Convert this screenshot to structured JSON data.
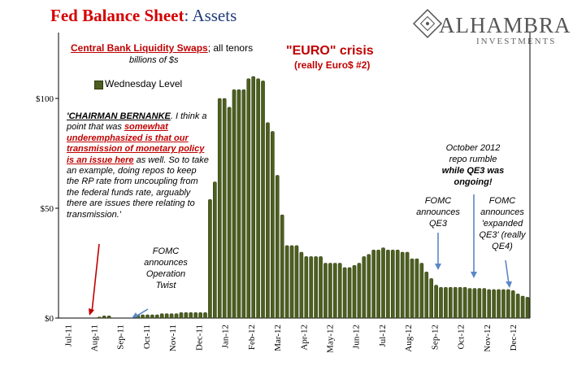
{
  "header": {
    "title_main": "Fed Balance Sheet",
    "title_rest": ": Assets",
    "logo_name": "ALHAMBRA",
    "logo_sub": "INVESTMENTS"
  },
  "subtitle": {
    "series_title": "Central Bank Liquidity Swaps",
    "tenors": "; all tenors",
    "units": "billions of $s"
  },
  "legend": {
    "label": "Wednesday Level"
  },
  "callouts": {
    "euro_line1": "\"EURO\" crisis",
    "euro_line2": "(really Euro$ #2)",
    "quote_speaker": "'CHAIRMAN BERNANKE",
    "quote_part1": ". I think a point that was ",
    "quote_highlight": "somewhat underemphasized is that our transmission of monetary policy is an issue here",
    "quote_part2": " as well. So to take an example, doing repos to keep the RP rate from uncoupling from the federal funds rate, arguably there are issues there relating to transmission.'",
    "twist_1": "FOMC",
    "twist_2": "announces",
    "twist_3": "Operation",
    "twist_4": "Twist",
    "qe3_1": "FOMC",
    "qe3_2": "announces",
    "qe3_3": "QE3",
    "oct_1": "October 2012",
    "oct_2": "repo rumble",
    "oct_3": "while QE3 was",
    "oct_4": "ongoing!",
    "qe4_1": "FOMC",
    "qe4_2": "announces",
    "qe4_3": "'expanded",
    "qe4_4": "QE3' (really",
    "qe4_5": "QE4)"
  },
  "colors": {
    "bar": "#4d5f1f",
    "bar_edge": "#2c3a0e",
    "title_red": "#d40000",
    "title_blue": "#1f3a7a",
    "arrow_red": "#c00000",
    "arrow_blue": "#5b87c5"
  },
  "chart_data": {
    "type": "bar",
    "grid": false,
    "legend_position": "top-left",
    "ylim": [
      0,
      130
    ],
    "yticks": [
      0,
      50,
      100
    ],
    "ytick_labels": [
      "$0",
      "$50",
      "$100"
    ],
    "xtick_labels": [
      "Jul-11",
      "Aug-11",
      "Sep-11",
      "Oct-11",
      "Nov-11",
      "Dec-11",
      "Jan-12",
      "Feb-12",
      "Mar-12",
      "Apr-12",
      "May-12",
      "Jun-12",
      "Jul-12",
      "Aug-12",
      "Sep-12",
      "Oct-12",
      "Nov-12",
      "Dec-12"
    ],
    "series": [
      {
        "name": "Wednesday Level",
        "values": [
          0,
          0,
          0,
          0,
          0,
          0,
          0,
          0,
          0.5,
          1,
          1,
          0,
          0,
          0,
          0,
          0,
          1.5,
          1.5,
          1.5,
          1.5,
          1.5,
          2,
          2,
          2,
          2,
          2.5,
          2.5,
          2.5,
          2.5,
          2.5,
          2.5,
          54,
          62,
          100,
          100,
          96,
          104,
          104,
          104,
          109,
          110,
          109,
          108,
          89,
          85,
          65,
          47,
          33,
          33,
          33,
          30,
          28,
          28,
          28,
          28,
          25,
          25,
          25,
          25,
          23,
          23,
          24,
          25,
          28,
          29,
          31,
          31,
          32,
          31,
          31,
          31,
          30,
          30,
          27,
          27,
          25,
          21,
          18,
          15,
          14,
          14,
          14,
          14,
          14,
          14,
          13.5,
          13.5,
          13.5,
          13.5,
          13,
          13,
          13,
          13,
          13,
          12.5,
          11,
          10,
          9.5
        ]
      }
    ]
  }
}
